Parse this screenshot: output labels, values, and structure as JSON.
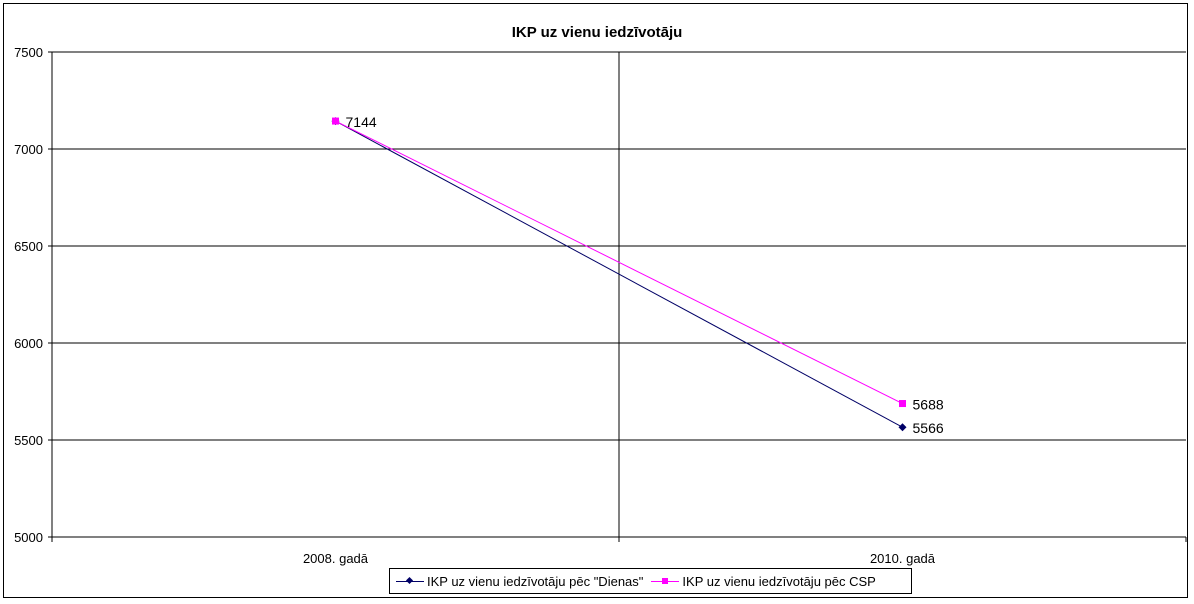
{
  "chart_data": {
    "type": "line",
    "title": "IKP uz vienu iedzīvotāju",
    "categories": [
      "2008. gadā",
      "2010. gadā"
    ],
    "ylim": [
      5000,
      7500
    ],
    "yticks": [
      "5000",
      "5500",
      "6000",
      "6500",
      "7000",
      "7500"
    ],
    "grid": true,
    "legend_position": "bottom",
    "series": [
      {
        "name": "IKP uz vienu iedzīvotāju pēc \"Dienas\"",
        "values": [
          7144,
          5566
        ],
        "labels": [
          "",
          "5566"
        ],
        "color": "#000066",
        "marker": "diamond"
      },
      {
        "name": "IKP uz vienu iedzīvotāju pēc CSP",
        "values": [
          7144,
          5688
        ],
        "labels": [
          "7144",
          "5688"
        ],
        "color": "#ff00ff",
        "marker": "square"
      }
    ]
  }
}
